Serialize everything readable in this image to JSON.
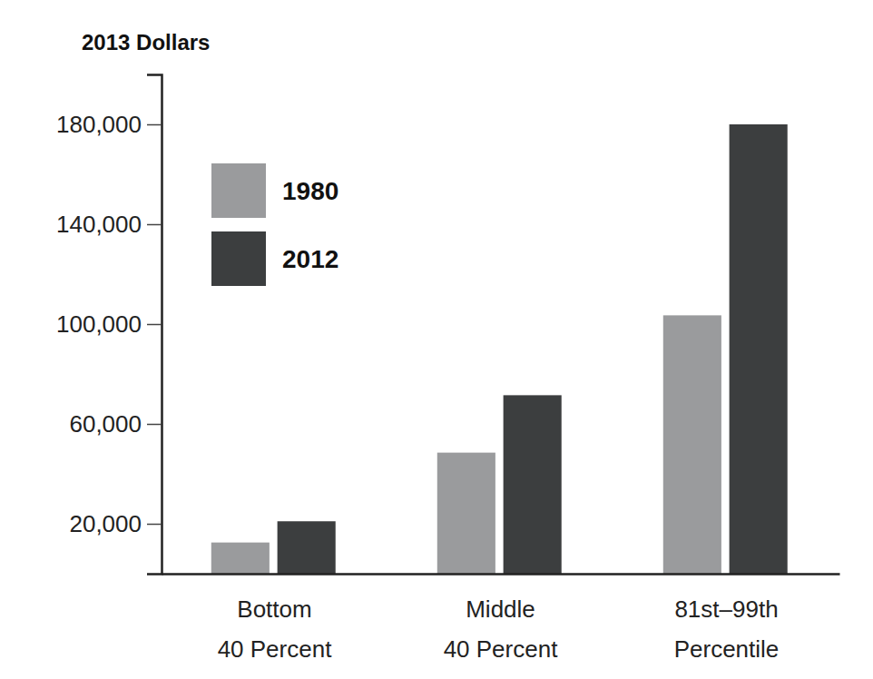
{
  "chart_data": {
    "type": "bar",
    "y_label": "2013 Dollars",
    "categories": [
      "Bottom 40 Percent",
      "Middle 40 Percent",
      "81st–99th Percentile"
    ],
    "series": [
      {
        "name": "1980",
        "color": "#9a9b9d",
        "values": [
          12500,
          48500,
          103500
        ]
      },
      {
        "name": "2012",
        "color": "#3c3e3f",
        "values": [
          21000,
          71500,
          180000
        ]
      }
    ],
    "ylim": [
      0,
      200000
    ],
    "yticks": [
      {
        "value": 20000,
        "label": "20,000"
      },
      {
        "value": 60000,
        "label": "60,000"
      },
      {
        "value": 100000,
        "label": "100,000"
      },
      {
        "value": 140000,
        "label": "140,000"
      },
      {
        "value": 180000,
        "label": "180,000"
      }
    ],
    "legend": "upper left"
  }
}
